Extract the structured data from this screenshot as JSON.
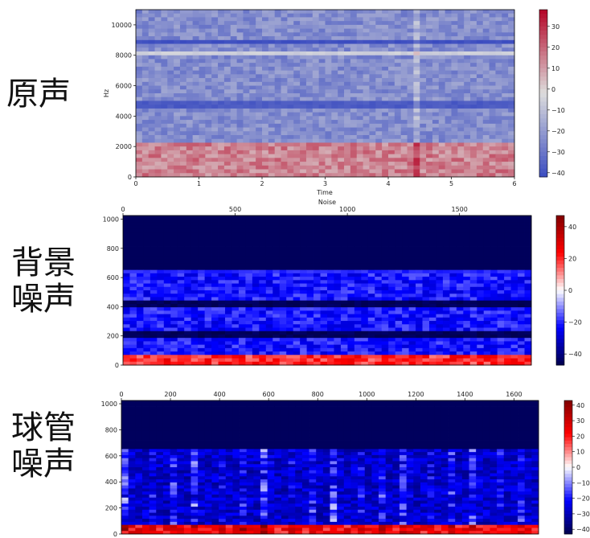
{
  "row_labels": [
    [
      "原声"
    ],
    [
      "背景",
      "噪声"
    ],
    [
      "球管",
      "噪声"
    ]
  ],
  "colors": {
    "cmap_low": "#3b4cc0",
    "cmap_mid": "#dddddd",
    "cmap_high": "#b40426",
    "seismic_low": "#00004c",
    "seismic_blue": "#0000ff",
    "seismic_white": "#ffffff",
    "seismic_red": "#ff0000",
    "seismic_high": "#800000"
  },
  "chart_data": [
    {
      "type": "heatmap",
      "title": "",
      "xlabel": "Time",
      "ylabel": "Hz",
      "x_ticks": [
        0,
        1,
        2,
        3,
        4,
        5,
        6
      ],
      "y_ticks": [
        0,
        2000,
        4000,
        6000,
        8000,
        10000
      ],
      "xlim": [
        0,
        6
      ],
      "ylim": [
        0,
        11000
      ],
      "colormap": "coolwarm",
      "colorbar_ticks": [
        30,
        20,
        10,
        0,
        -10,
        -20,
        -30,
        -40
      ],
      "colorbar_range": [
        -42,
        38
      ],
      "bands": [
        {
          "y": 8900,
          "level": -41
        },
        {
          "y": 4700,
          "level": -38
        },
        {
          "y": 8100,
          "level": -6
        }
      ],
      "background_level": -24,
      "low_freq_level": 15,
      "low_freq_cutoff": 2200,
      "vertical_lines_x": [
        4.45
      ],
      "tick_position_x": "bottom"
    },
    {
      "type": "heatmap",
      "title": "Noise",
      "xlabel": "",
      "ylabel": "",
      "x_ticks": [
        0,
        500,
        1000,
        1500
      ],
      "y_ticks": [
        0,
        200,
        400,
        600,
        800,
        1000
      ],
      "xlim": [
        0,
        1820
      ],
      "ylim": [
        0,
        1025
      ],
      "colormap": "seismic",
      "colorbar_ticks": [
        40,
        20,
        0,
        -20,
        -40
      ],
      "colorbar_range": [
        -47,
        47
      ],
      "empty_above": 650,
      "bands": [
        {
          "y": 645,
          "level": -20
        },
        {
          "y": 415,
          "level": -45
        },
        {
          "y": 215,
          "level": -45
        }
      ],
      "background_level": -22,
      "low_freq_level": 20,
      "low_freq_cutoff": 60,
      "tick_position_x": "top"
    },
    {
      "type": "heatmap",
      "title": "",
      "xlabel": "",
      "ylabel": "",
      "x_ticks": [
        0,
        200,
        400,
        600,
        800,
        1000,
        1200,
        1400,
        1600
      ],
      "y_ticks": [
        0,
        200,
        400,
        600,
        800,
        1000
      ],
      "xlim": [
        0,
        1700
      ],
      "ylim": [
        0,
        1025
      ],
      "colormap": "seismic",
      "colorbar_ticks": [
        40,
        30,
        20,
        10,
        0,
        -10,
        -20,
        -30,
        -40
      ],
      "colorbar_range": [
        -43,
        43
      ],
      "empty_above": 650,
      "periodic_columns": 18,
      "background_level": -28,
      "low_freq_level": 22,
      "low_freq_cutoff": 70,
      "tick_position_x": "top"
    }
  ]
}
